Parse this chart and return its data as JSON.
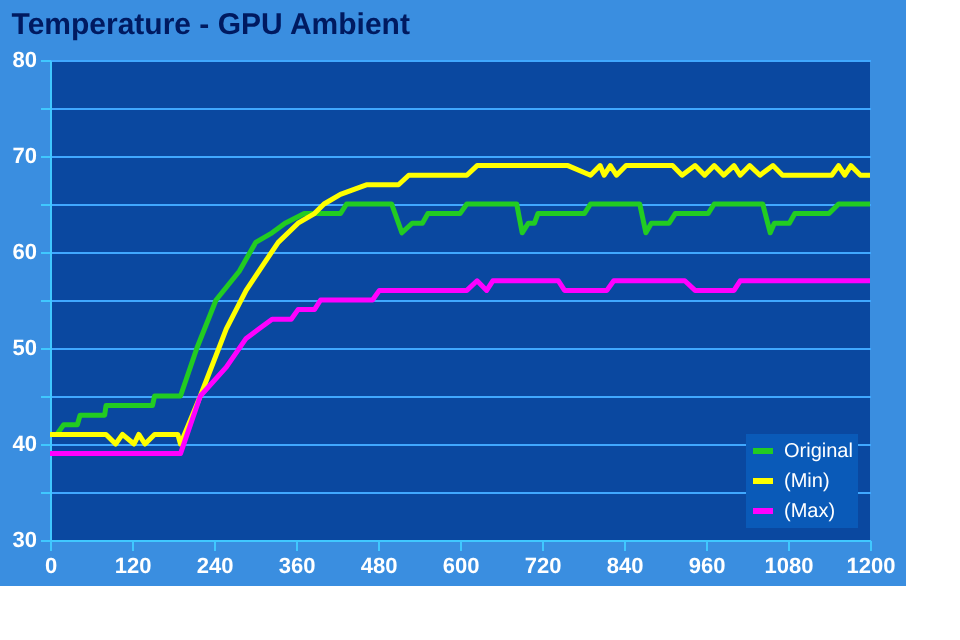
{
  "chart_data": {
    "type": "line",
    "title": "Temperature - GPU Ambient",
    "xlim": [
      0,
      1200
    ],
    "xticks": [
      0,
      120,
      240,
      360,
      480,
      600,
      720,
      840,
      960,
      1080,
      1200
    ],
    "ylim": [
      30,
      80
    ],
    "yticks": [
      30,
      {
        "value": 35,
        "label": null
      },
      40,
      {
        "value": 45,
        "label": null
      },
      50,
      {
        "value": 55,
        "label": null
      },
      60,
      {
        "value": 65,
        "label": null
      },
      70,
      {
        "value": 75,
        "label": null
      },
      80
    ],
    "grid": "y",
    "legend": "bottom right",
    "marker": "none",
    "line_style": "solid",
    "series": [
      {
        "name": "Original",
        "color": "#22cc22",
        "x": [
          0,
          10,
          20,
          40,
          44,
          80,
          82,
          150,
          153,
          191,
          215,
          243,
          277,
          301,
          325,
          344,
          372,
          425,
          434,
          500,
          515,
          530,
          545,
          553,
          600,
          610,
          683,
          691,
          700,
          709,
          714,
          782,
          791,
          863,
          872,
          880,
          906,
          915,
          963,
          972,
          1043,
          1054,
          1060,
          1082,
          1090,
          1140,
          1154,
          1200
        ],
        "values": [
          41,
          41,
          42,
          42,
          43,
          43,
          44,
          44,
          45,
          45,
          50,
          55,
          58,
          61,
          62,
          63,
          64,
          64,
          65,
          65,
          62,
          63,
          63,
          64,
          64,
          65,
          65,
          62,
          63,
          63,
          64,
          64,
          65,
          65,
          62,
          63,
          63,
          64,
          64,
          65,
          65,
          62,
          63,
          63,
          64,
          64,
          65,
          65
        ]
      },
      {
        "name": "(Min)",
        "color": "#ffff00",
        "x": [
          0,
          82,
          96,
          106,
          123,
          130,
          139,
          153,
          187,
          191,
          220,
          258,
          287,
          315,
          334,
          363,
          387,
          401,
          425,
          463,
          510,
          525,
          610,
          625,
          758,
          791,
          805,
          811,
          820,
          829,
          843,
          911,
          925,
          944,
          958,
          972,
          986,
          1001,
          1010,
          1024,
          1039,
          1058,
          1072,
          1144,
          1154,
          1163,
          1172,
          1186,
          1200
        ],
        "values": [
          41,
          41,
          40,
          41,
          40,
          41,
          40,
          41,
          41,
          40,
          45,
          52,
          56,
          59,
          61,
          63,
          64,
          65,
          66,
          67,
          67,
          68,
          68,
          69,
          69,
          68,
          69,
          68,
          69,
          68,
          69,
          69,
          68,
          69,
          68,
          69,
          68,
          69,
          68,
          69,
          68,
          69,
          68,
          68,
          69,
          68,
          69,
          68,
          68
        ]
      },
      {
        "name": "(Max)",
        "color": "#ff00ff",
        "x": [
          0,
          191,
          220,
          258,
          287,
          306,
          325,
          353,
          363,
          387,
          396,
          472,
          482,
          610,
          625,
          639,
          648,
          744,
          753,
          815,
          825,
          929,
          944,
          1001,
          1010,
          1200
        ],
        "values": [
          39,
          39,
          45,
          48,
          51,
          52,
          53,
          53,
          54,
          54,
          55,
          55,
          56,
          56,
          57,
          56,
          57,
          57,
          56,
          56,
          57,
          57,
          56,
          56,
          57,
          57
        ]
      }
    ]
  }
}
